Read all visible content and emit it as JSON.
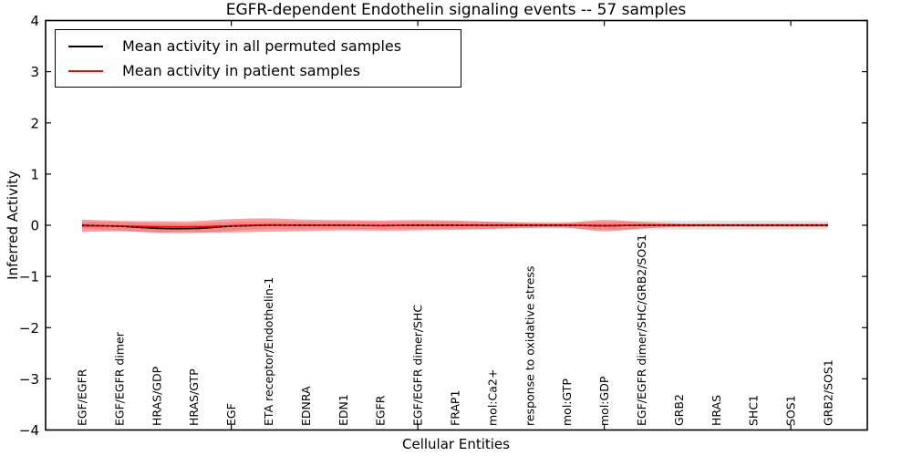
{
  "title": "EGFR-dependent Endothelin signaling events -- 57 samples",
  "axes": {
    "xlabel": "Cellular Entities",
    "ylabel": "Inferred Activity"
  },
  "legend": {
    "position": "upper left",
    "items": [
      {
        "label": "Mean activity in all permuted samples",
        "color": "#000000"
      },
      {
        "label": "Mean activity in patient samples",
        "color": "#ff0000"
      }
    ]
  },
  "chart_data": {
    "type": "line",
    "title": "EGFR-dependent Endothelin signaling events -- 57 samples",
    "xlabel": "Cellular Entities",
    "ylabel": "Inferred Activity",
    "ylim": [
      -4,
      4
    ],
    "yticks": [
      4,
      3,
      2,
      1,
      0,
      -1,
      -2,
      -3,
      -4
    ],
    "xtick_indices": [
      4,
      9,
      14,
      19
    ],
    "grid": false,
    "legend_position": "upper left",
    "categories": [
      "EGF/EGFR",
      "EGF/EGFR dimer",
      "HRAS/GDP",
      "HRAS/GTP",
      "EGF",
      "ETA receptor/Endothelin-1",
      "EDNRA",
      "EDN1",
      "EGFR",
      "EGF/EGFR dimer/SHC",
      "FRAP1",
      "mol:Ca2+",
      "response to oxidative stress",
      "mol:GTP",
      "mol:GDP",
      "EGF/EGFR dimer/SHC/GRB2/SOS1",
      "GRB2",
      "HRAS",
      "SHC1",
      "SOS1",
      "GRB2/SOS1"
    ],
    "series": [
      {
        "name": "Mean activity in all permuted samples",
        "color": "#000000",
        "line_style": "solid with dotted overlay",
        "band_color": "#dcdcdc",
        "band_opacity": 0.85,
        "values": [
          0,
          -0.02,
          -0.06,
          -0.065,
          -0.02,
          0,
          0,
          0,
          -0.005,
          0,
          0,
          0,
          0,
          0,
          -0.01,
          0,
          0,
          0,
          0,
          0,
          0
        ],
        "std": [
          0.07,
          0.085,
          0.1,
          0.1,
          0.085,
          0.07,
          0.07,
          0.07,
          0.07,
          0.07,
          0.07,
          0.07,
          0.065,
          0.065,
          0.075,
          0.085,
          0.085,
          0.085,
          0.085,
          0.085,
          0.08
        ]
      },
      {
        "name": "Mean activity in patient samples",
        "color": "#ff0000",
        "line_style": "solid",
        "band_color": "#ff0000",
        "band_opacity": 0.38,
        "values": [
          -0.01,
          -0.015,
          -0.03,
          -0.03,
          -0.01,
          0.005,
          0,
          0,
          -0.005,
          0,
          0,
          0,
          0,
          0,
          -0.005,
          0,
          0,
          0,
          0,
          0,
          0
        ],
        "std": [
          0.12,
          0.1,
          0.11,
          0.11,
          0.13,
          0.13,
          0.11,
          0.1,
          0.1,
          0.1,
          0.09,
          0.07,
          0.05,
          0.05,
          0.11,
          0.065,
          0.033,
          0.028,
          0.028,
          0.028,
          0.028
        ]
      }
    ]
  }
}
